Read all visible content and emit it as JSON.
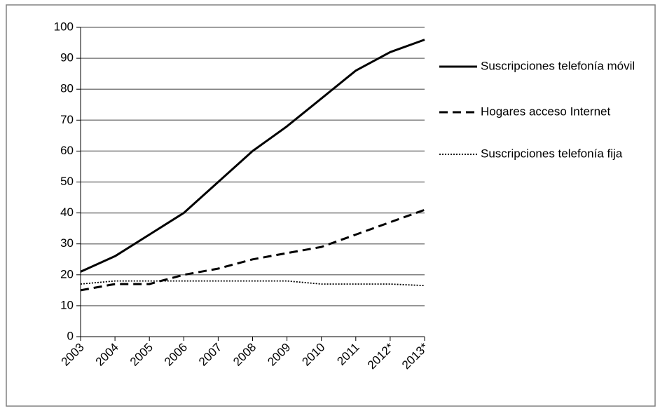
{
  "chart_data": {
    "type": "line",
    "x": [
      "2003",
      "2004",
      "2005",
      "2006",
      "2007",
      "2008",
      "2009",
      "2010",
      "2011",
      "2012*",
      "2013*"
    ],
    "ylim": [
      0,
      100
    ],
    "yticks": [
      0,
      10,
      20,
      30,
      40,
      50,
      60,
      70,
      80,
      90,
      100
    ],
    "grid": "horizontal",
    "legend_position": "right",
    "series": [
      {
        "name": "Suscripciones telefonía móvil",
        "style": "solid",
        "values": [
          21,
          26,
          33,
          40,
          50,
          60,
          68,
          77,
          86,
          92,
          96
        ]
      },
      {
        "name": "Hogares acceso Internet",
        "style": "dashed",
        "values": [
          15,
          17,
          17,
          20,
          22,
          25,
          27,
          29,
          33,
          37,
          41
        ]
      },
      {
        "name": "Suscripciones telefonía fija",
        "style": "dotted",
        "values": [
          17,
          18,
          18,
          18,
          18,
          18,
          18,
          17,
          17,
          17,
          16.5
        ]
      }
    ],
    "colors": {
      "line": "#000000",
      "grid": "#808080",
      "border": "#808080"
    }
  }
}
